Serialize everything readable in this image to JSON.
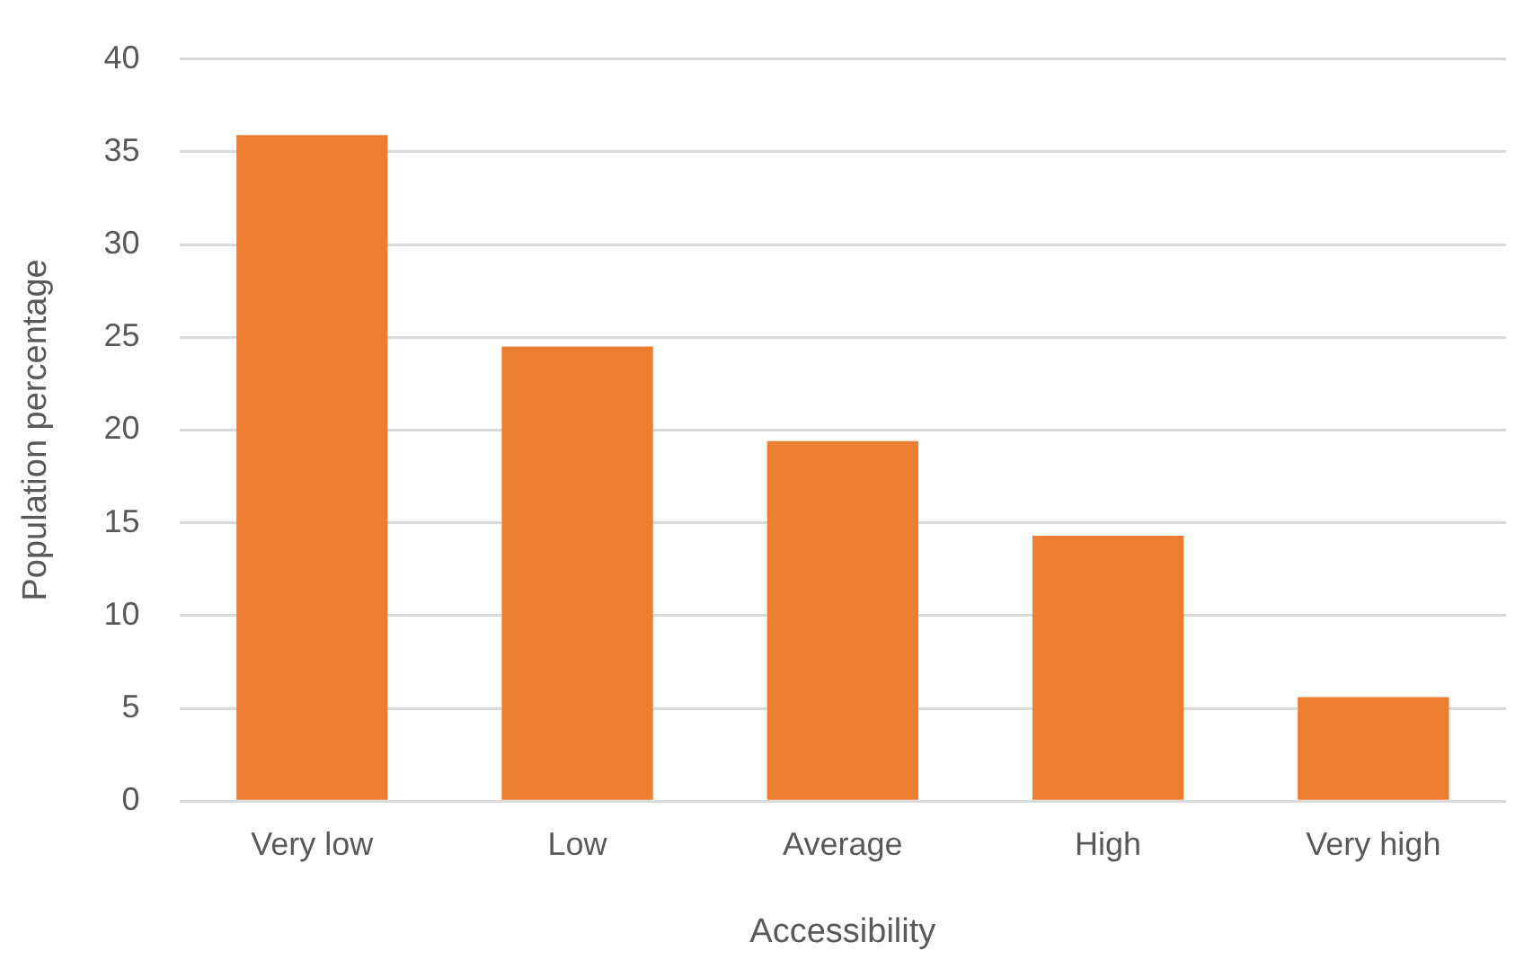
{
  "chart_data": {
    "type": "bar",
    "xlabel": "Accessibility",
    "ylabel": "Population percentage",
    "categories": [
      "Very low",
      "Low",
      "Average",
      "High",
      "Very high"
    ],
    "values": [
      35.9,
      24.5,
      19.4,
      14.3,
      5.6
    ],
    "color": "#ed7d31",
    "ylim": [
      0,
      40
    ],
    "yticks": [
      0,
      5,
      10,
      15,
      20,
      25,
      30,
      35,
      40
    ],
    "grid": "y",
    "legend": false
  }
}
